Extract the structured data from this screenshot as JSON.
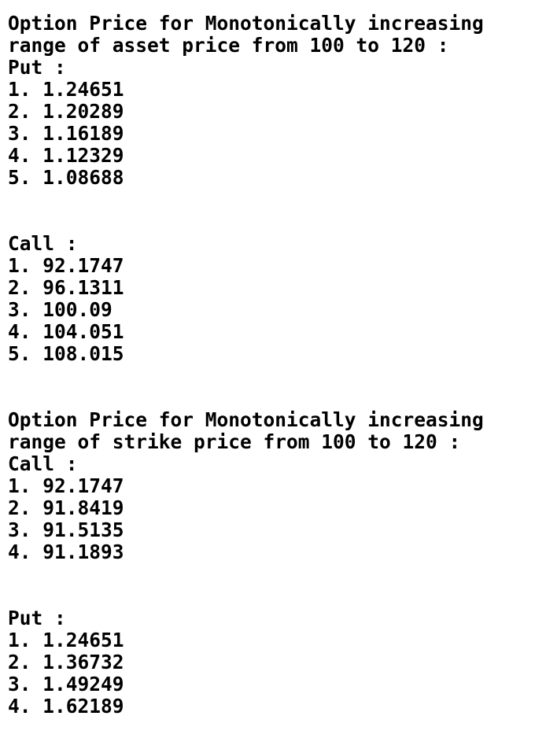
{
  "sections": [
    {
      "heading_lines": [
        "Option Price for Monotonically increasing",
        "range of asset price from 100 to 120 :"
      ],
      "groups": [
        {
          "label": "Put :",
          "items": [
            "1. 1.24651",
            "2. 1.20289",
            "3. 1.16189",
            "4. 1.12329",
            "5. 1.08688"
          ]
        },
        {
          "label": "Call :",
          "items": [
            "1. 92.1747",
            "2. 96.1311",
            "3. 100.09",
            "4. 104.051",
            "5. 108.015"
          ]
        }
      ]
    },
    {
      "heading_lines": [
        "Option Price for Monotonically increasing",
        "range of strike price from 100 to 120 :"
      ],
      "groups": [
        {
          "label": "Call :",
          "items": [
            "1. 92.1747",
            "2. 91.8419",
            "3. 91.5135",
            "4. 91.1893"
          ]
        },
        {
          "label": "Put :",
          "items": [
            "1. 1.24651",
            "2. 1.36732",
            "3. 1.49249",
            "4. 1.62189"
          ]
        }
      ]
    }
  ]
}
